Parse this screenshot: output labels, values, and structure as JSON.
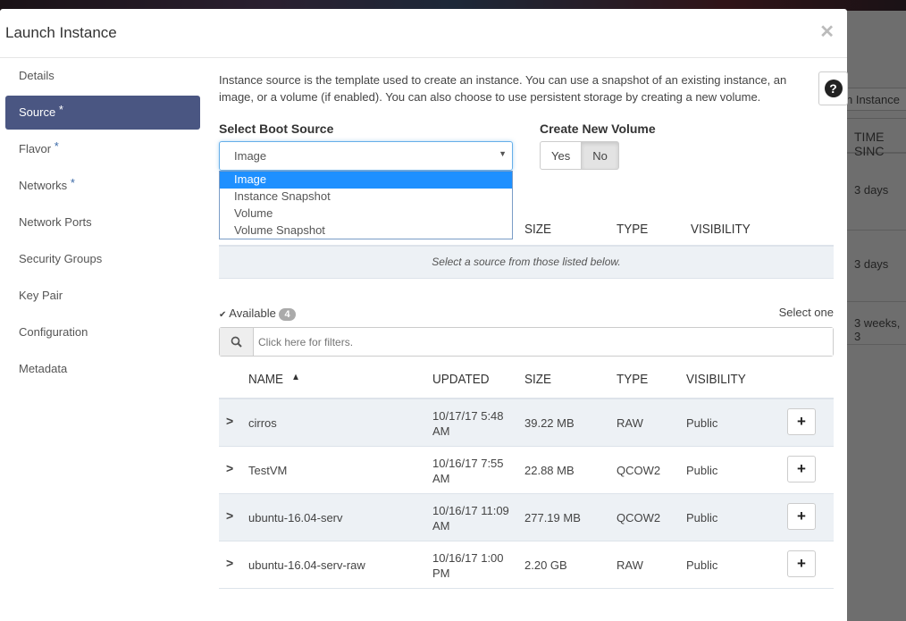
{
  "background": {
    "button_label": "n Instance",
    "column_header": "TIME SINC",
    "rows": [
      "3 days",
      "3 days",
      "3 weeks, 3"
    ]
  },
  "modal": {
    "title": "Launch Instance",
    "close_icon": "times-icon"
  },
  "sidebar": {
    "items": [
      {
        "label": "Details",
        "required": false
      },
      {
        "label": "Source",
        "required": true,
        "active": true
      },
      {
        "label": "Flavor",
        "required": true
      },
      {
        "label": "Networks",
        "required": true
      },
      {
        "label": "Network Ports",
        "required": false
      },
      {
        "label": "Security Groups",
        "required": false
      },
      {
        "label": "Key Pair",
        "required": false
      },
      {
        "label": "Configuration",
        "required": false
      },
      {
        "label": "Metadata",
        "required": false
      }
    ],
    "required_marker": "*"
  },
  "source": {
    "description": "Instance source is the template used to create an instance. You can use a snapshot of an existing instance, an image, or a volume (if enabled). You can also choose to use persistent storage by creating a new volume.",
    "boot_source_label": "Select Boot Source",
    "boot_source_value": "Image",
    "boot_source_options": [
      "Image",
      "Instance Snapshot",
      "Volume",
      "Volume Snapshot"
    ],
    "new_volume_label": "Create New Volume",
    "new_volume_yes": "Yes",
    "new_volume_no": "No",
    "new_volume_selected": "No",
    "allocated_headers": [
      "SIZE",
      "TYPE",
      "VISIBILITY"
    ],
    "allocated_empty": "Select a source from those listed below.",
    "available_label": "Available",
    "available_count": "4",
    "select_one": "Select one",
    "filter_placeholder": "Click here for filters.",
    "headers": [
      "NAME",
      "UPDATED",
      "SIZE",
      "TYPE",
      "VISIBILITY"
    ],
    "sort_indicator": "▲",
    "rows": [
      {
        "name": "cirros",
        "updated": "10/17/17 5:48 AM",
        "size": "39.22 MB",
        "type": "RAW",
        "visibility": "Public"
      },
      {
        "name": "TestVM",
        "updated": "10/16/17 7:55 AM",
        "size": "22.88 MB",
        "type": "QCOW2",
        "visibility": "Public"
      },
      {
        "name": "ubuntu-16.04-serv",
        "updated": "10/16/17 11:09 AM",
        "size": "277.19 MB",
        "type": "QCOW2",
        "visibility": "Public"
      },
      {
        "name": "ubuntu-16.04-serv-raw",
        "updated": "10/16/17 1:00 PM",
        "size": "2.20 GB",
        "type": "RAW",
        "visibility": "Public"
      }
    ],
    "add_label": "+"
  },
  "colors": {
    "active_nav": "#4a5682",
    "selected_option": "#1e90ff",
    "row_alt": "#edf1f5"
  }
}
